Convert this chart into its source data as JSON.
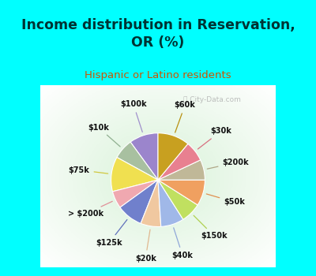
{
  "title": "Income distribution in Reservation,\nOR (%)",
  "subtitle": "Hispanic or Latino residents",
  "title_color": "#003333",
  "subtitle_color": "#cc5500",
  "bg_cyan": "#00ffff",
  "labels": [
    "$100k",
    "$10k",
    "$75k",
    "> $200k",
    "$125k",
    "$20k",
    "$40k",
    "$150k",
    "$50k",
    "$200k",
    "$30k",
    "$60k"
  ],
  "values": [
    10,
    7,
    12,
    6,
    9,
    7,
    8,
    7,
    9,
    7,
    7,
    11
  ],
  "colors": [
    "#9b85cc",
    "#a8c0a0",
    "#f0e050",
    "#f0a8b0",
    "#7080cc",
    "#f0c8a0",
    "#a0b8e8",
    "#c0e060",
    "#f0a060",
    "#c0b898",
    "#e88090",
    "#c8a020"
  ],
  "startangle": 90,
  "line_colors": [
    "#a090cc",
    "#90b090",
    "#d0c840",
    "#e09098",
    "#6070bb",
    "#e0b890",
    "#90a8d8",
    "#b0d050",
    "#e09050",
    "#b0a888",
    "#d87080",
    "#b89010"
  ]
}
